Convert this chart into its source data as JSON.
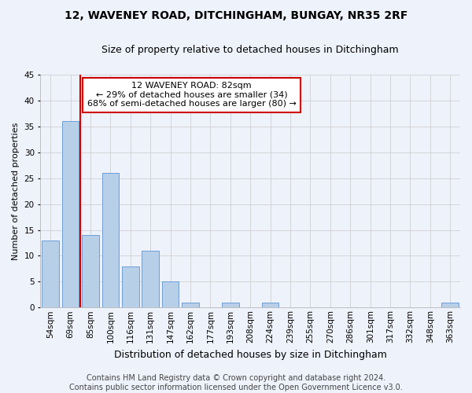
{
  "title": "12, WAVENEY ROAD, DITCHINGHAM, BUNGAY, NR35 2RF",
  "subtitle": "Size of property relative to detached houses in Ditchingham",
  "xlabel": "Distribution of detached houses by size in Ditchingham",
  "ylabel": "Number of detached properties",
  "categories": [
    "54sqm",
    "69sqm",
    "85sqm",
    "100sqm",
    "116sqm",
    "131sqm",
    "147sqm",
    "162sqm",
    "177sqm",
    "193sqm",
    "208sqm",
    "224sqm",
    "239sqm",
    "255sqm",
    "270sqm",
    "286sqm",
    "301sqm",
    "317sqm",
    "332sqm",
    "348sqm",
    "363sqm"
  ],
  "values": [
    13,
    36,
    14,
    26,
    8,
    11,
    5,
    1,
    0,
    1,
    0,
    1,
    0,
    0,
    0,
    0,
    0,
    0,
    0,
    0,
    1
  ],
  "bar_color": "#b8cfe8",
  "bar_edge_color": "#6a9fd8",
  "background_color": "#eef2fb",
  "grid_color": "#d0d0d0",
  "vline_color": "#cc0000",
  "vline_x": 1.5,
  "annotation_title": "12 WAVENEY ROAD: 82sqm",
  "annotation_line1": "← 29% of detached houses are smaller (34)",
  "annotation_line2": "68% of semi-detached houses are larger (80) →",
  "annotation_box_color": "#ffffff",
  "annotation_border_color": "#cc0000",
  "footer_line1": "Contains HM Land Registry data © Crown copyright and database right 2024.",
  "footer_line2": "Contains public sector information licensed under the Open Government Licence v3.0.",
  "ylim": [
    0,
    45
  ],
  "yticks": [
    0,
    5,
    10,
    15,
    20,
    25,
    30,
    35,
    40,
    45
  ],
  "title_fontsize": 10,
  "subtitle_fontsize": 9,
  "xlabel_fontsize": 9,
  "ylabel_fontsize": 8,
  "tick_fontsize": 7.5,
  "annotation_fontsize": 8,
  "footer_fontsize": 7
}
